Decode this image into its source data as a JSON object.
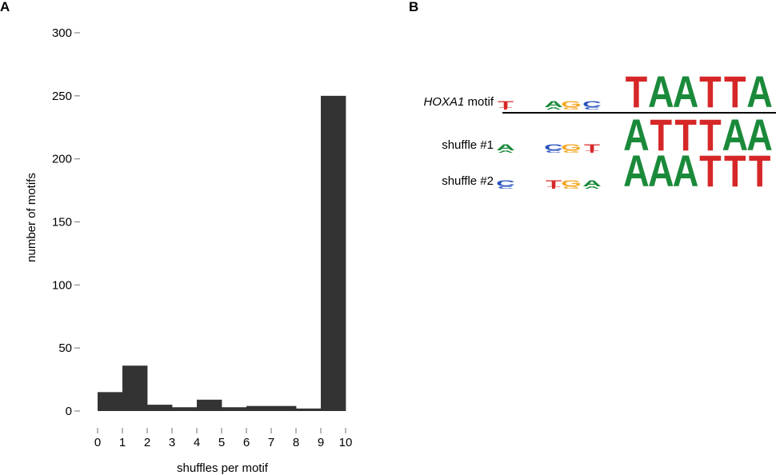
{
  "panels": [
    {
      "letter": "A"
    },
    {
      "letter": "B"
    }
  ],
  "chart_data": [
    {
      "type": "bar",
      "panel": "A",
      "categories": [
        "0",
        "1",
        "2",
        "3",
        "4",
        "5",
        "6",
        "7",
        "8",
        "9"
      ],
      "values": [
        15,
        36,
        5,
        3,
        9,
        3,
        4,
        4,
        2,
        250
      ],
      "x_tick_labels": [
        "0",
        "1",
        "2",
        "3",
        "4",
        "5",
        "6",
        "7",
        "8",
        "9",
        "10"
      ],
      "y_ticks": [
        0,
        50,
        100,
        150,
        200,
        250,
        300
      ],
      "xlabel": "shuffles per motif",
      "ylabel": "number of motifs",
      "ylim": [
        0,
        300
      ],
      "xlim": [
        0,
        10
      ],
      "bar_color": "#333333",
      "grid": false
    }
  ],
  "motif_panel": {
    "rows": [
      {
        "label_italic": "HOXA1",
        "label_rest": " motif",
        "small": [
          [
            "T",
            "#d62728"
          ],
          [
            "",
            ""
          ],
          [
            "A",
            "#1a8a3a"
          ],
          [
            "G",
            "#f5a623"
          ],
          [
            "C",
            "#2a52be"
          ]
        ],
        "big": "TAATTA"
      },
      {
        "label_italic": "",
        "label_rest": "shuffle #1",
        "small": [
          [
            "A",
            "#1a8a3a"
          ],
          [
            "",
            ""
          ],
          [
            "C",
            "#2a52be"
          ],
          [
            "G",
            "#f5a623"
          ],
          [
            "T",
            "#d62728"
          ]
        ],
        "big": "ATTTAA"
      },
      {
        "label_italic": "",
        "label_rest": "shuffle #2",
        "small": [
          [
            "C",
            "#2a52be"
          ],
          [
            "",
            ""
          ],
          [
            "T",
            "#d62728"
          ],
          [
            "G",
            "#f5a623"
          ],
          [
            "A",
            "#1a8a3a"
          ]
        ],
        "big": "AAATTT"
      }
    ],
    "colors": {
      "A": "#1a8a3a",
      "T": "#d62728",
      "G": "#f5a623",
      "C": "#2a52be"
    }
  }
}
